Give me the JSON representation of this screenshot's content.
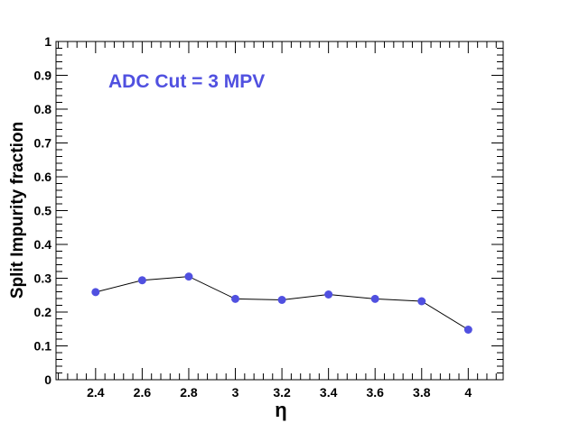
{
  "chart_data": {
    "type": "line",
    "title": "",
    "xlabel": "η",
    "ylabel": "Split Impurity fraction",
    "annotation": "ADC Cut = 3 MPV",
    "xlim": [
      2.23,
      4.15
    ],
    "ylim": [
      0,
      1
    ],
    "x_ticks": [
      "2.4",
      "2.6",
      "2.8",
      "3",
      "3.2",
      "3.4",
      "3.6",
      "3.8",
      "4"
    ],
    "y_ticks": [
      "0",
      "0.1",
      "0.2",
      "0.3",
      "0.4",
      "0.5",
      "0.6",
      "0.7",
      "0.8",
      "0.9",
      "1"
    ],
    "grid": false,
    "legend": "none",
    "series": [
      {
        "x": [
          2.4,
          2.6,
          2.8,
          3.0,
          3.2,
          3.4,
          3.6,
          3.8,
          4.0
        ],
        "y": [
          0.259,
          0.294,
          0.305,
          0.239,
          0.236,
          0.252,
          0.239,
          0.232,
          0.148
        ],
        "marker_color": "#5050e0",
        "line_color": "#000000"
      }
    ],
    "colors": {
      "annotation": "#5050e0"
    }
  }
}
